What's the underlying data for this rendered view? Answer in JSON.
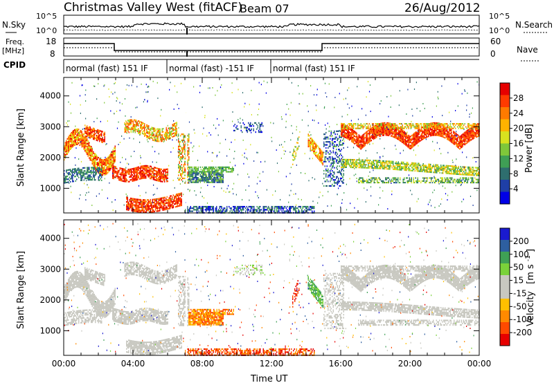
{
  "header": {
    "station": "Christmas Valley West (fitACF)",
    "beam": "Beam 07",
    "date": "26/Aug/2012"
  },
  "top_panels": {
    "nsky_label": "N.Sky",
    "nsearch_label": "N.Search",
    "nsky_ticks": [
      "10^5",
      "10^0"
    ],
    "nsearch_ticks": [
      "10^5",
      "10^0"
    ],
    "freq_label_1": "Freq.",
    "freq_label_2": "[MHz]",
    "freq_ticks": [
      "18",
      "8"
    ],
    "nave_label": "Nave",
    "nave_ticks": [
      "60",
      "0"
    ],
    "cpid_label": "CPID",
    "cpid_segments": [
      {
        "label": "normal (fast) 151 IF",
        "start_h": 0,
        "end_h": 6
      },
      {
        "label": "normal (fast) -151 IF",
        "start_h": 6,
        "end_h": 12
      },
      {
        "label": "normal (fast) 151 IF",
        "start_h": 12,
        "end_h": 24
      }
    ]
  },
  "colors": {
    "power_scale": [
      "#0000e6",
      "#1f3fa6",
      "#2e6e6e",
      "#3f9f55",
      "#7fc73a",
      "#d9e21f",
      "#ffb300",
      "#ff7a00",
      "#ff3a00",
      "#e60000"
    ],
    "velocity_scale": [
      "#e60000",
      "#ff4a00",
      "#ff8a00",
      "#ffc000",
      "#c8c8c0",
      "#c8c8c0",
      "#7ad23a",
      "#3fa055",
      "#2e5fa0",
      "#1a1ad0"
    ]
  },
  "chart_data": [
    {
      "type": "heatmap",
      "panel": "power",
      "xlabel": "",
      "ylabel": "Slant Range [km]",
      "xlim_hours": [
        0,
        24
      ],
      "ylim_km": [
        200,
        4600
      ],
      "yticks": [
        "1000",
        "2000",
        "3000",
        "4000"
      ],
      "colorbar_label": "Power [dB]",
      "colorbar_ticks": [
        "28",
        "24",
        "20",
        "16",
        "12",
        "8",
        "4"
      ],
      "colorbar_range": [
        0,
        32
      ]
    },
    {
      "type": "heatmap",
      "panel": "velocity",
      "xlabel": "Time UT",
      "ylabel": "Slant Range [km]",
      "xlim_hours": [
        0,
        24
      ],
      "ylim_km": [
        200,
        4600
      ],
      "yticks": [
        "1000",
        "2000",
        "3000",
        "4000"
      ],
      "xticks": [
        "00:00",
        "04:00",
        "08:00",
        "12:00",
        "16:00",
        "20:00",
        "00:00"
      ],
      "colorbar_label_1": "Velocity",
      "colorbar_label_2": "[m s",
      "colorbar_label_exp": "-1",
      "colorbar_label_3": "]",
      "colorbar_ticks": [
        "200",
        "100",
        "50",
        "15",
        "-15",
        "-50",
        "-100",
        "-200"
      ]
    }
  ]
}
